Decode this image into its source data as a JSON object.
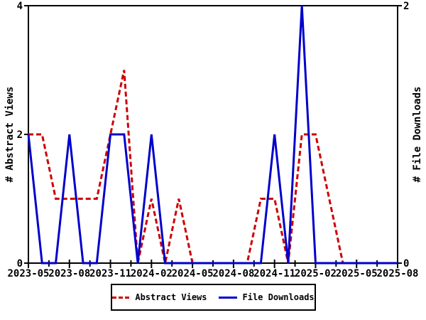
{
  "chart_data": {
    "type": "line",
    "title": "",
    "x": [
      "2023-05",
      "2023-06",
      "2023-07",
      "2023-08",
      "2023-09",
      "2023-10",
      "2023-11",
      "2023-12",
      "2024-01",
      "2024-02",
      "2024-03",
      "2024-04",
      "2024-05",
      "2024-06",
      "2024-07",
      "2024-08",
      "2024-09",
      "2024-10",
      "2024-11",
      "2024-12",
      "2025-01",
      "2025-02",
      "2025-03",
      "2025-04",
      "2025-05",
      "2025-06",
      "2025-07",
      "2025-08"
    ],
    "x_tick_labels": [
      "2023-05",
      "2023-08",
      "2023-11",
      "2024-02",
      "2024-05",
      "2024-08",
      "2024-11",
      "2025-02",
      "2025-05",
      "2025-08"
    ],
    "x_tick_every": 3,
    "series": [
      {
        "name": "Abstract Views",
        "axis": "left",
        "color": "#CC0000",
        "style": "dashed",
        "values": [
          2,
          2,
          1,
          1,
          1,
          1,
          2,
          3,
          0,
          1,
          0,
          1,
          0,
          0,
          0,
          0,
          0,
          1,
          1,
          0,
          2,
          2,
          1,
          0,
          0,
          0,
          0,
          0
        ]
      },
      {
        "name": "File Downloads",
        "axis": "right",
        "color": "#0000CC",
        "style": "solid",
        "values": [
          1,
          0,
          0,
          1,
          0,
          0,
          1,
          1,
          0,
          1,
          0,
          0,
          0,
          0,
          0,
          0,
          0,
          0,
          1,
          0,
          2,
          0,
          0,
          0,
          0,
          0,
          0,
          0
        ]
      }
    ],
    "left_axis": {
      "label": "# Abstract Views",
      "range": [
        0,
        4
      ],
      "ticks": [
        0,
        2,
        4
      ]
    },
    "right_axis": {
      "label": "# File Downloads",
      "range": [
        0,
        2
      ],
      "ticks": [
        0,
        2
      ]
    },
    "grid": false,
    "legend_position": "bottom-center",
    "axis_color": "#000000",
    "background_color": "#FFFFFF"
  }
}
